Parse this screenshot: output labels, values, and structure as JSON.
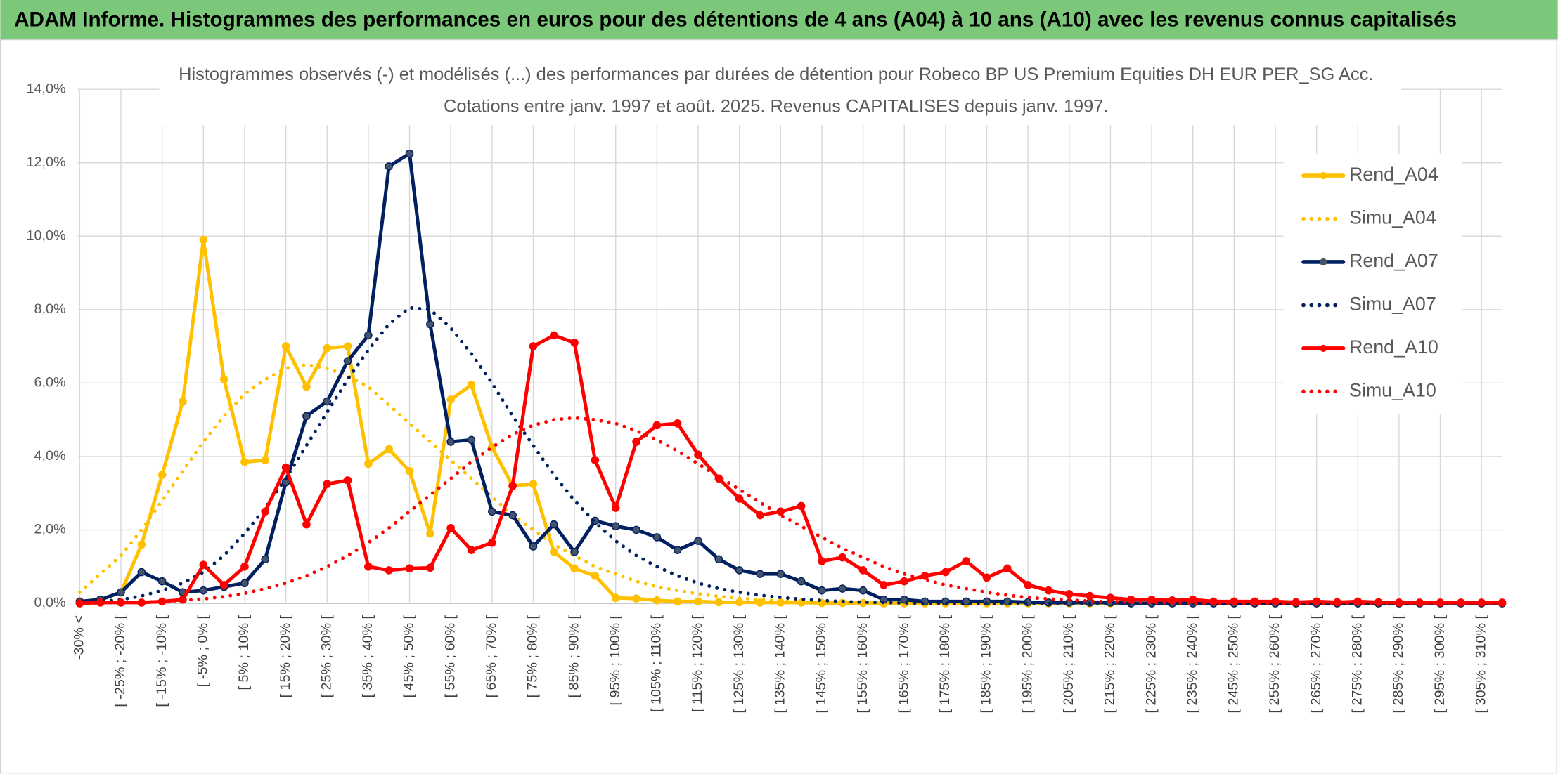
{
  "header": {
    "title": "ADAM Informe. Histogrammes des performances en euros pour des détentions de 4 ans (A04) à 10 ans (A10) avec les revenus connus capitalisés"
  },
  "chart_data": {
    "type": "line",
    "title": "Histogrammes observés (-) et modélisés (...) des performances par durées de détention pour Robeco BP US Premium Equities DH EUR PER_SG Acc.",
    "subtitle": "Cotations entre janv. 1997 et août. 2025. Revenus CAPITALISES depuis janv. 1997.",
    "categories": [
      "-30% <",
      null,
      "[ -25% ; -20% [",
      null,
      "[ -15% ; -10% [",
      null,
      "[ -5% ; 0% [",
      null,
      "[ 5% ; 10% [",
      null,
      "[ 15% ; 20% [",
      null,
      "[ 25% ; 30% [",
      null,
      "[ 35% ; 40% [",
      null,
      "[ 45% ; 50% [",
      null,
      "[ 55% ; 60% [",
      null,
      "[ 65% ; 70% [",
      null,
      "[ 75% ; 80% [",
      null,
      "[ 85% ; 90% [",
      null,
      "[ 95% ; 100% [",
      null,
      "[ 105% ; 110% [",
      null,
      "[ 115% ; 120% [",
      null,
      "[ 125% ; 130% [",
      null,
      "[ 135% ; 140% [",
      null,
      "[ 145% ; 150% [",
      null,
      "[ 155% ; 160% [",
      null,
      "[ 165% ; 170% [",
      null,
      "[ 175% ; 180% [",
      null,
      "[ 185% ; 190% [",
      null,
      "[ 195% ; 200% [",
      null,
      "[ 205% ; 210% [",
      null,
      "[ 215% ; 220% [",
      null,
      "[ 225% ; 230% [",
      null,
      "[ 235% ; 240% [",
      null,
      "[ 245% ; 250% [",
      null,
      "[ 255% ; 260% [",
      null,
      "[ 265% ; 270% [",
      null,
      "[ 275% ; 280% [",
      null,
      "[ 285% ; 290% [",
      null,
      "[ 295% ; 300% [",
      null,
      "[ 305% ; 310% [",
      null
    ],
    "ylim": [
      0,
      14
    ],
    "yticks": [
      {
        "value": 0,
        "label": "0,0%"
      },
      {
        "value": 2,
        "label": "2,0%"
      },
      {
        "value": 4,
        "label": "4,0%"
      },
      {
        "value": 6,
        "label": "6,0%"
      },
      {
        "value": 8,
        "label": "8,0%"
      },
      {
        "value": 10,
        "label": "10,0%"
      },
      {
        "value": 12,
        "label": "12,0%"
      },
      {
        "value": 14,
        "label": "14,0%"
      }
    ],
    "grid": true,
    "legend": "right",
    "series": [
      {
        "name": "Rend_A04",
        "color": "#FFC000",
        "style": "solid",
        "values": [
          0.05,
          0.1,
          0.3,
          1.6,
          3.5,
          5.5,
          9.9,
          6.1,
          3.85,
          3.9,
          7,
          5.9,
          6.95,
          7,
          3.8,
          4.2,
          3.6,
          1.9,
          5.55,
          5.95,
          4.25,
          3.2,
          3.25,
          1.4,
          0.95,
          0.75,
          0.15,
          0.13,
          0.08,
          0.05,
          0.05,
          0.03,
          0.03,
          0.02,
          0.02,
          0.02,
          0.01,
          0.01,
          0.01,
          0,
          0,
          0,
          0,
          0,
          0,
          0,
          0,
          0,
          0,
          0,
          0,
          0,
          0,
          0,
          0,
          0,
          0,
          0,
          0,
          0,
          0,
          0,
          0,
          0,
          0,
          0,
          0,
          0,
          0,
          0
        ]
      },
      {
        "name": "Simu_A04",
        "color": "#FFC000",
        "style": "dotted",
        "values": [
          0.3,
          0.8,
          1.3,
          2.0,
          2.8,
          3.6,
          4.4,
          5.1,
          5.7,
          6.1,
          6.4,
          6.5,
          6.4,
          6.2,
          5.9,
          5.4,
          4.9,
          4.4,
          3.9,
          3.4,
          2.9,
          2.4,
          2.0,
          1.6,
          1.3,
          1.0,
          0.8,
          0.6,
          0.45,
          0.35,
          0.26,
          0.19,
          0.14,
          0.1,
          0.07,
          0.05,
          0.03,
          0.02,
          0.01,
          0.01,
          0,
          0,
          0,
          0,
          0,
          0,
          0,
          0,
          0,
          0,
          0,
          0,
          0,
          0,
          0,
          0,
          0,
          0,
          0,
          0,
          0,
          0,
          0,
          0,
          0,
          0,
          0,
          0,
          0,
          0
        ]
      },
      {
        "name": "Rend_A07",
        "color": "#002060",
        "style": "solid",
        "values": [
          0.05,
          0.1,
          0.3,
          0.85,
          0.6,
          0.3,
          0.35,
          0.45,
          0.55,
          1.2,
          3.3,
          5.1,
          5.5,
          6.6,
          7.3,
          11.9,
          12.25,
          7.6,
          4.4,
          4.45,
          2.5,
          2.4,
          1.55,
          2.15,
          1.4,
          2.25,
          2.1,
          2.0,
          1.8,
          1.45,
          1.7,
          1.2,
          0.9,
          0.8,
          0.8,
          0.6,
          0.35,
          0.4,
          0.35,
          0.1,
          0.1,
          0.05,
          0.05,
          0.05,
          0.05,
          0.05,
          0.03,
          0.02,
          0.02,
          0.02,
          0.02,
          0,
          0,
          0,
          0,
          0,
          0,
          0,
          0,
          0,
          0,
          0,
          0,
          0,
          0,
          0,
          0,
          0,
          0,
          0
        ]
      },
      {
        "name": "Simu_A07",
        "color": "#002060",
        "style": "dotted",
        "values": [
          0.02,
          0.05,
          0.1,
          0.2,
          0.35,
          0.55,
          0.85,
          1.3,
          1.9,
          2.6,
          3.4,
          4.3,
          5.2,
          6.1,
          6.9,
          7.6,
          8.05,
          8.0,
          7.5,
          6.8,
          6.0,
          5.1,
          4.3,
          3.5,
          2.8,
          2.2,
          1.7,
          1.3,
          1.0,
          0.75,
          0.55,
          0.4,
          0.3,
          0.22,
          0.16,
          0.11,
          0.08,
          0.05,
          0.03,
          0.02,
          0.01,
          0,
          0,
          0,
          0,
          0,
          0,
          0,
          0,
          0,
          0,
          0,
          0,
          0,
          0,
          0,
          0,
          0,
          0,
          0,
          0,
          0,
          0,
          0,
          0,
          0,
          0,
          0,
          0,
          0
        ]
      },
      {
        "name": "Rend_A10",
        "color": "#FF0000",
        "style": "solid",
        "values": [
          0,
          0.02,
          0.02,
          0.02,
          0.05,
          0.1,
          1.05,
          0.5,
          1.0,
          2.5,
          3.7,
          2.15,
          3.25,
          3.35,
          1.0,
          0.9,
          0.95,
          0.97,
          2.05,
          1.45,
          1.65,
          3.2,
          7.0,
          7.3,
          7.1,
          3.9,
          2.6,
          4.4,
          4.85,
          4.9,
          4.05,
          3.4,
          2.85,
          2.4,
          2.5,
          2.65,
          1.15,
          1.25,
          0.9,
          0.5,
          0.6,
          0.75,
          0.85,
          1.15,
          0.7,
          0.95,
          0.5,
          0.35,
          0.25,
          0.2,
          0.15,
          0.1,
          0.1,
          0.08,
          0.1,
          0.05,
          0.05,
          0.05,
          0.05,
          0.03,
          0.05,
          0.03,
          0.05,
          0.03,
          0.02,
          0.02,
          0.02,
          0.02,
          0.02,
          0.02
        ]
      },
      {
        "name": "Simu_A10",
        "color": "#FF0000",
        "style": "dotted",
        "values": [
          0,
          0.01,
          0.02,
          0.03,
          0.05,
          0.08,
          0.12,
          0.18,
          0.27,
          0.4,
          0.55,
          0.75,
          1.0,
          1.3,
          1.65,
          2.05,
          2.5,
          2.95,
          3.4,
          3.85,
          4.25,
          4.6,
          4.85,
          5.0,
          5.05,
          5.0,
          4.9,
          4.7,
          4.45,
          4.15,
          3.8,
          3.45,
          3.1,
          2.75,
          2.4,
          2.1,
          1.8,
          1.5,
          1.25,
          1.0,
          0.8,
          0.65,
          0.5,
          0.4,
          0.3,
          0.22,
          0.16,
          0.12,
          0.09,
          0.06,
          0.04,
          0.03,
          0.02,
          0.01,
          0,
          0,
          0,
          0,
          0,
          0,
          0,
          0,
          0,
          0,
          0,
          0,
          0,
          0,
          0,
          0
        ]
      }
    ]
  }
}
